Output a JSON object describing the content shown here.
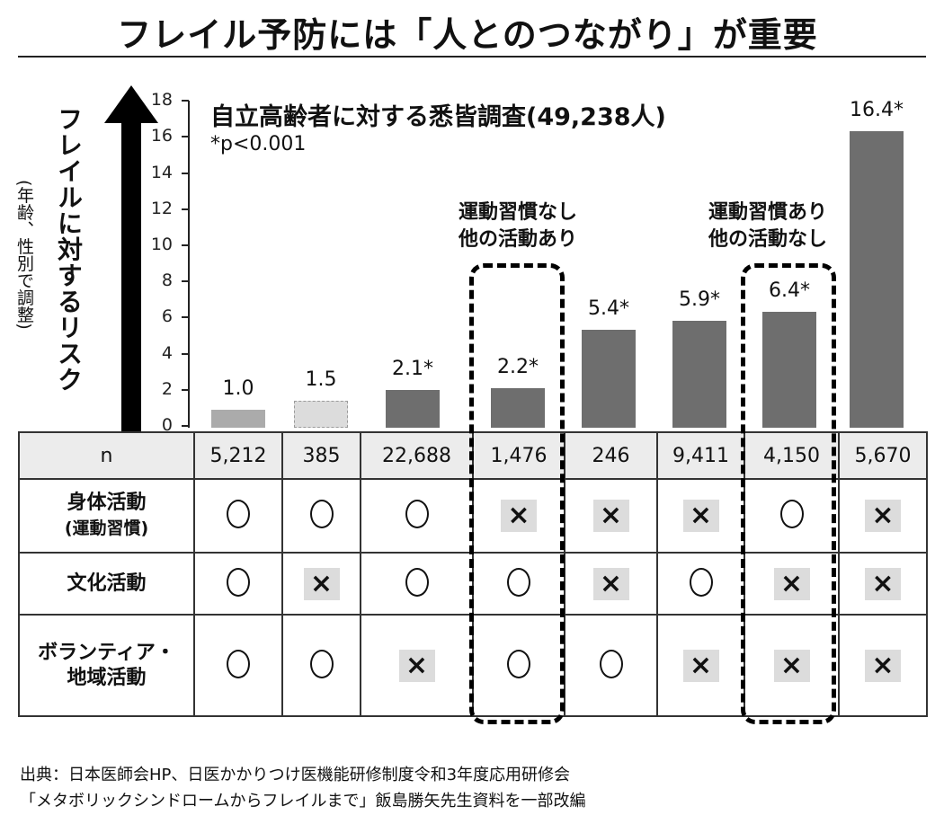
{
  "title": "フレイル予防には「人とのつながり」が重要",
  "survey_label": "自立高齢者に対する悉皆調査(49,238人)",
  "significance_note": "*p<0.001",
  "y_axis": {
    "title": "フレイルに対するリスク",
    "subtitle": "(年齢、性別で調整)",
    "ticks": [
      "0",
      "2",
      "4",
      "6",
      "8",
      "10",
      "12",
      "14",
      "16",
      "18"
    ]
  },
  "groups": [
    {
      "line1": "運動習慣なし",
      "line2": "他の活動あり"
    },
    {
      "line1": "運動習慣あり",
      "line2": "他の活動なし"
    }
  ],
  "bar_labels": [
    "1.0",
    "1.5",
    "2.1*",
    "2.2*",
    "5.4*",
    "5.9*",
    "6.4*",
    "16.4*"
  ],
  "table": {
    "n_label": "n",
    "n_values": [
      "5,212",
      "385",
      "22,688",
      "1,476",
      "246",
      "9,411",
      "4,150",
      "5,670"
    ],
    "rows": [
      {
        "label": "身体活動",
        "sublabel": "(運動習慣)",
        "marks": [
          "○",
          "○",
          "○",
          "×",
          "×",
          "×",
          "○",
          "×"
        ]
      },
      {
        "label": "文化活動",
        "sublabel": "",
        "marks": [
          "○",
          "×",
          "○",
          "○",
          "×",
          "○",
          "×",
          "×"
        ]
      },
      {
        "label": "ボランティア・",
        "sublabel": "地域活動",
        "marks": [
          "○",
          "○",
          "×",
          "○",
          "○",
          "×",
          "×",
          "×"
        ]
      }
    ]
  },
  "source": {
    "line1": "出典：日本医師会HP、日医かかりつけ医機能研修制度令和3年度応用研修会",
    "line2": "「メタボリックシンドロームからフレイルまで」飯島勝矢先生資料を一部改編"
  },
  "colors": {
    "bar": "#6e6e6e",
    "reference_bar": "#ababab",
    "ghost_bar": "#dcdcdc",
    "n_row_bg": "#ececec",
    "cross_bg": "#dcdcdc"
  },
  "chart_data": {
    "type": "bar",
    "title": "フレイル予防には「人とのつながり」が重要",
    "subtitle": "自立高齢者に対する悉皆調査(49,238人)",
    "ylabel": "フレイルに対するリスク(年齢、性別で調整)",
    "xlabel": "",
    "ylim": [
      0,
      18
    ],
    "yticks": [
      0,
      2,
      4,
      6,
      8,
      10,
      12,
      14,
      16,
      18
    ],
    "categories": [
      "身体○ 文化○ ボランティア○",
      "身体○ 文化× ボランティア○",
      "身体○ 文化○ ボランティア×",
      "身体× 文化○ ボランティア○",
      "身体× 文化× ボランティア○",
      "身体× 文化○ ボランティア×",
      "身体○ 文化× ボランティア×",
      "身体× 文化× ボランティア×"
    ],
    "values": [
      1.0,
      1.5,
      2.1,
      2.2,
      5.4,
      5.9,
      6.4,
      16.4
    ],
    "significant": [
      false,
      false,
      true,
      true,
      true,
      true,
      true,
      true
    ],
    "n": [
      5212,
      385,
      22688,
      1476,
      246,
      9411,
      4150,
      5670
    ],
    "annotations": [
      "*p<0.001",
      "運動習慣なし 他の活動あり (bar 4)",
      "運動習慣あり 他の活動なし (bar 7)"
    ],
    "grid": false,
    "legend": null
  }
}
